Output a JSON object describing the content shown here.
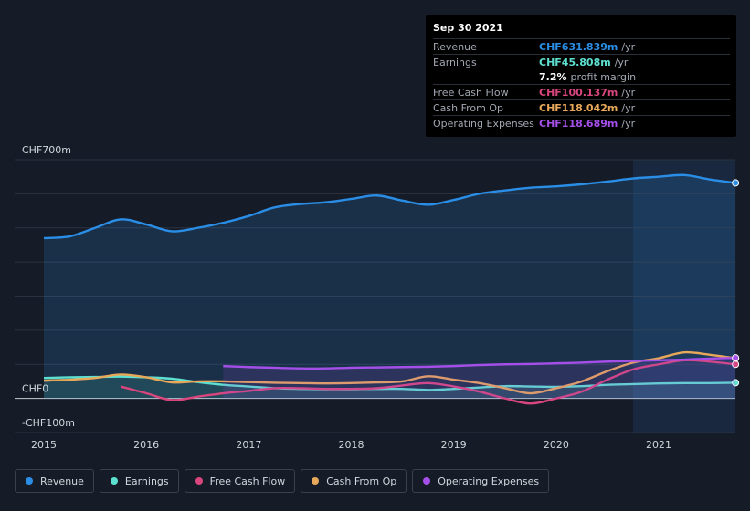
{
  "tooltip": {
    "date": "Sep 30 2021",
    "rows": [
      {
        "label": "Revenue",
        "value": "CHF631.839m",
        "unit": "/yr",
        "color": "#2b8ee6"
      },
      {
        "label": "Earnings",
        "value": "CHF45.808m",
        "unit": "/yr",
        "color": "#5de0d0"
      },
      {
        "label": "",
        "value": "7.2%",
        "unit": "profit margin",
        "color": "#ffffff"
      },
      {
        "label": "Free Cash Flow",
        "value": "CHF100.137m",
        "unit": "/yr",
        "color": "#d9467e"
      },
      {
        "label": "Cash From Op",
        "value": "CHF118.042m",
        "unit": "/yr",
        "color": "#e8a85a"
      },
      {
        "label": "Operating Expenses",
        "value": "CHF118.689m",
        "unit": "/yr",
        "color": "#a44fe8"
      }
    ]
  },
  "legend": [
    {
      "label": "Revenue",
      "color": "#2b8ee6"
    },
    {
      "label": "Earnings",
      "color": "#5de0d0"
    },
    {
      "label": "Free Cash Flow",
      "color": "#d9467e"
    },
    {
      "label": "Cash From Op",
      "color": "#e8a85a"
    },
    {
      "label": "Operating Expenses",
      "color": "#a44fe8"
    }
  ],
  "chart_data": {
    "type": "line",
    "y_tick_labels": [
      "CHF700m",
      "CHF0",
      "-CHF100m"
    ],
    "x_tick_labels": [
      "2015",
      "2016",
      "2017",
      "2018",
      "2019",
      "2020",
      "2021"
    ],
    "ylim": [
      -100,
      700
    ],
    "xlim": [
      2014.7,
      2021.75
    ],
    "grid": true,
    "legend_position": "bottom",
    "highlight_from": 2020.75,
    "series": [
      {
        "name": "Revenue",
        "color": "#2b8ee6",
        "fill": true,
        "points": [
          [
            2015.0,
            470
          ],
          [
            2015.25,
            475
          ],
          [
            2015.5,
            500
          ],
          [
            2015.75,
            525
          ],
          [
            2016.0,
            510
          ],
          [
            2016.25,
            490
          ],
          [
            2016.5,
            500
          ],
          [
            2016.75,
            515
          ],
          [
            2017.0,
            535
          ],
          [
            2017.25,
            560
          ],
          [
            2017.5,
            570
          ],
          [
            2017.75,
            575
          ],
          [
            2018.0,
            585
          ],
          [
            2018.25,
            595
          ],
          [
            2018.5,
            580
          ],
          [
            2018.75,
            568
          ],
          [
            2019.0,
            582
          ],
          [
            2019.25,
            600
          ],
          [
            2019.5,
            610
          ],
          [
            2019.75,
            618
          ],
          [
            2020.0,
            622
          ],
          [
            2020.25,
            628
          ],
          [
            2020.5,
            636
          ],
          [
            2020.75,
            645
          ],
          [
            2021.0,
            650
          ],
          [
            2021.25,
            655
          ],
          [
            2021.5,
            642
          ],
          [
            2021.75,
            632
          ]
        ]
      },
      {
        "name": "Earnings",
        "color": "#5de0d0",
        "fill": true,
        "points": [
          [
            2015.0,
            60
          ],
          [
            2015.25,
            62
          ],
          [
            2015.5,
            63
          ],
          [
            2015.75,
            64
          ],
          [
            2016.0,
            62
          ],
          [
            2016.25,
            58
          ],
          [
            2016.5,
            48
          ],
          [
            2016.75,
            40
          ],
          [
            2017.0,
            35
          ],
          [
            2017.25,
            30
          ],
          [
            2017.5,
            28
          ],
          [
            2017.75,
            27
          ],
          [
            2018.0,
            27
          ],
          [
            2018.25,
            28
          ],
          [
            2018.5,
            28
          ],
          [
            2018.75,
            25
          ],
          [
            2019.0,
            28
          ],
          [
            2019.25,
            32
          ],
          [
            2019.5,
            36
          ],
          [
            2019.75,
            35
          ],
          [
            2020.0,
            34
          ],
          [
            2020.25,
            36
          ],
          [
            2020.5,
            40
          ],
          [
            2020.75,
            42
          ],
          [
            2021.0,
            44
          ],
          [
            2021.25,
            45
          ],
          [
            2021.5,
            45
          ],
          [
            2021.75,
            46
          ]
        ]
      },
      {
        "name": "Free Cash Flow",
        "color": "#d9467e",
        "fill": false,
        "points": [
          [
            2015.75,
            35
          ],
          [
            2016.0,
            15
          ],
          [
            2016.25,
            -5
          ],
          [
            2016.5,
            5
          ],
          [
            2016.75,
            15
          ],
          [
            2017.0,
            22
          ],
          [
            2017.25,
            30
          ],
          [
            2017.5,
            30
          ],
          [
            2017.75,
            28
          ],
          [
            2018.0,
            28
          ],
          [
            2018.25,
            30
          ],
          [
            2018.5,
            38
          ],
          [
            2018.75,
            45
          ],
          [
            2019.0,
            35
          ],
          [
            2019.25,
            20
          ],
          [
            2019.5,
            0
          ],
          [
            2019.75,
            -15
          ],
          [
            2020.0,
            0
          ],
          [
            2020.25,
            20
          ],
          [
            2020.5,
            55
          ],
          [
            2020.75,
            85
          ],
          [
            2021.0,
            100
          ],
          [
            2021.25,
            112
          ],
          [
            2021.5,
            108
          ],
          [
            2021.75,
            100
          ]
        ]
      },
      {
        "name": "Cash From Op",
        "color": "#e8a85a",
        "fill": false,
        "points": [
          [
            2015.0,
            52
          ],
          [
            2015.25,
            55
          ],
          [
            2015.5,
            60
          ],
          [
            2015.75,
            70
          ],
          [
            2016.0,
            62
          ],
          [
            2016.25,
            47
          ],
          [
            2016.5,
            50
          ],
          [
            2016.75,
            50
          ],
          [
            2017.0,
            48
          ],
          [
            2017.25,
            46
          ],
          [
            2017.5,
            45
          ],
          [
            2017.75,
            44
          ],
          [
            2018.0,
            45
          ],
          [
            2018.25,
            47
          ],
          [
            2018.5,
            50
          ],
          [
            2018.75,
            65
          ],
          [
            2019.0,
            55
          ],
          [
            2019.25,
            45
          ],
          [
            2019.5,
            30
          ],
          [
            2019.75,
            15
          ],
          [
            2020.0,
            30
          ],
          [
            2020.25,
            50
          ],
          [
            2020.5,
            80
          ],
          [
            2020.75,
            105
          ],
          [
            2021.0,
            118
          ],
          [
            2021.25,
            135
          ],
          [
            2021.5,
            128
          ],
          [
            2021.75,
            118
          ]
        ]
      },
      {
        "name": "Operating Expenses",
        "color": "#a44fe8",
        "fill": true,
        "points": [
          [
            2016.75,
            95
          ],
          [
            2017.0,
            92
          ],
          [
            2017.25,
            90
          ],
          [
            2017.5,
            88
          ],
          [
            2017.75,
            88
          ],
          [
            2018.0,
            90
          ],
          [
            2018.25,
            91
          ],
          [
            2018.5,
            92
          ],
          [
            2018.75,
            93
          ],
          [
            2019.0,
            95
          ],
          [
            2019.25,
            98
          ],
          [
            2019.5,
            100
          ],
          [
            2019.75,
            101
          ],
          [
            2020.0,
            103
          ],
          [
            2020.25,
            105
          ],
          [
            2020.5,
            108
          ],
          [
            2020.75,
            110
          ],
          [
            2021.0,
            112
          ],
          [
            2021.25,
            114
          ],
          [
            2021.5,
            117
          ],
          [
            2021.75,
            119
          ]
        ]
      }
    ]
  }
}
